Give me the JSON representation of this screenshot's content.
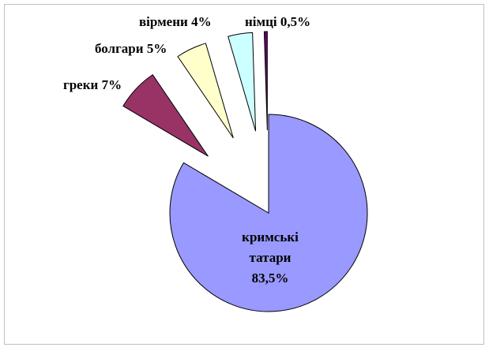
{
  "chart_data": {
    "type": "pie",
    "categories": [
      "кримські татари",
      "греки",
      "болгари",
      "вірмени",
      "німці"
    ],
    "values": [
      83.5,
      7,
      5,
      4,
      0.5
    ],
    "value_labels": [
      "83,5%",
      "7%",
      "5%",
      "4%",
      "0,5%"
    ],
    "colors": [
      "#9999ff",
      "#993366",
      "#ffffcc",
      "#ccffff",
      "#660066"
    ]
  }
}
